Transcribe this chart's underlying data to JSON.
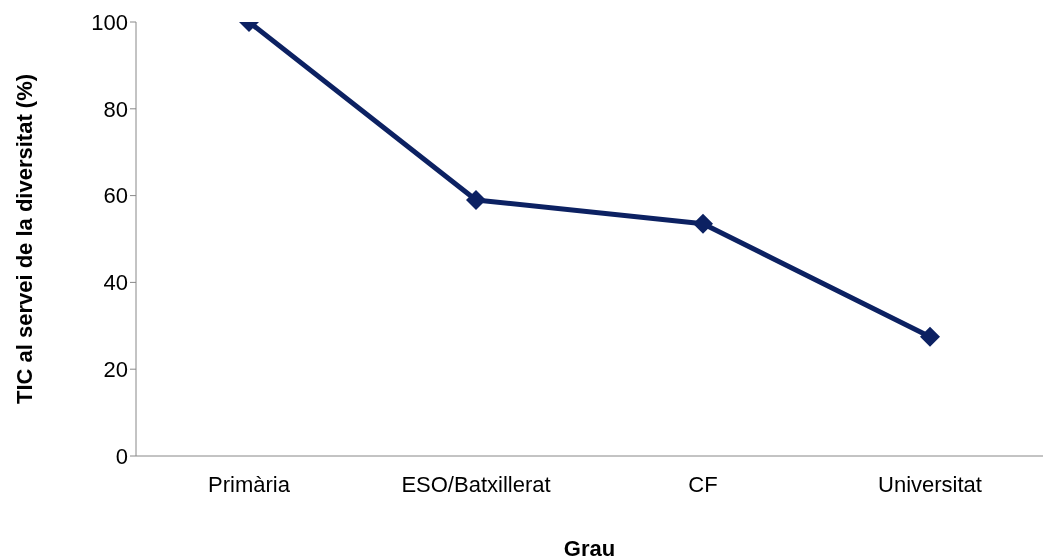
{
  "chart_data": {
    "type": "line",
    "xlabel": "Grau",
    "ylabel": "TIC al servei de la diversitat (%)",
    "categories": [
      "Primària",
      "ESO/Batxillerat",
      "CF",
      "Universitat"
    ],
    "series": [
      {
        "color": "#0c2162",
        "values": [
          100,
          59,
          53.5,
          27.5
        ]
      }
    ],
    "ylim": [
      0,
      100
    ],
    "yticks": [
      0,
      20,
      40,
      60,
      80,
      100
    ],
    "grid": false,
    "legend": false,
    "marker": "diamond",
    "line_style": "solid"
  }
}
